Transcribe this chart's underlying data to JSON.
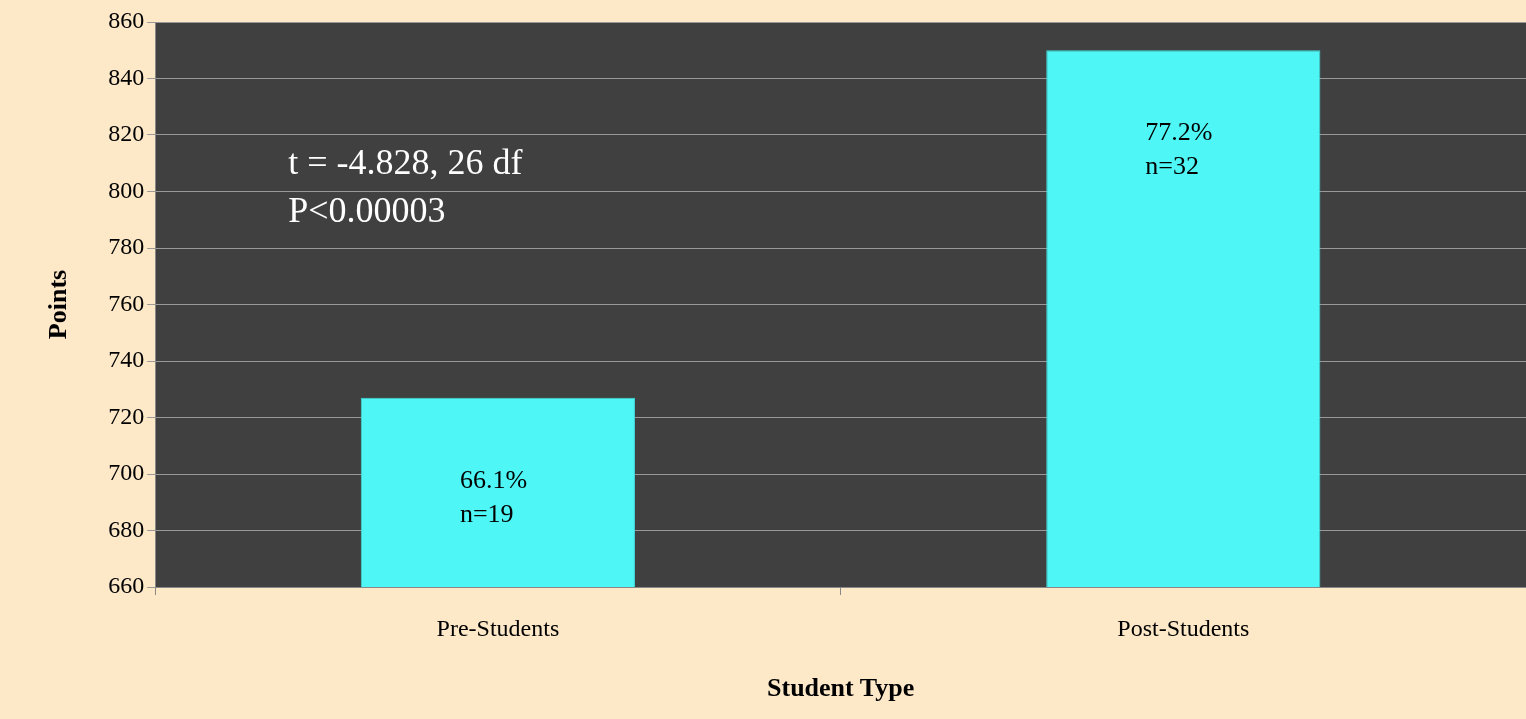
{
  "chart_data": {
    "type": "bar",
    "xlabel": "Student Type",
    "ylabel": "Points",
    "categories": [
      "Pre-Students",
      "Post-Students"
    ],
    "values": [
      727,
      850
    ],
    "color": "#4ff6f6",
    "annotations": [
      "t = -4.828, 26 df",
      "P<0.00003",
      "66.1%\nn=19",
      "77.2%\nn=32"
    ],
    "ylim": [
      660,
      860
    ],
    "yticks": [
      660,
      680,
      700,
      720,
      740,
      760,
      780,
      800,
      820,
      840,
      860
    ],
    "grid": "y"
  }
}
